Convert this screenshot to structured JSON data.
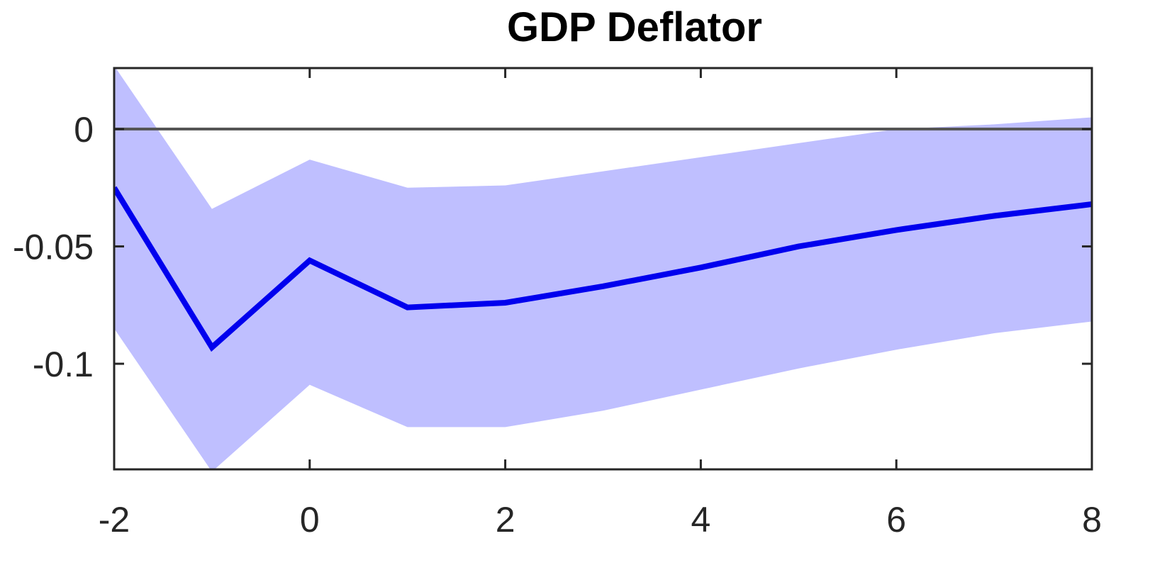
{
  "chart_data": {
    "type": "line",
    "title": "GDP Deflator",
    "xlabel": "",
    "ylabel": "",
    "xlim": [
      -2,
      8
    ],
    "ylim": [
      -0.145,
      0.026
    ],
    "x_ticks": [
      -2,
      0,
      2,
      4,
      6,
      8
    ],
    "x_tick_labels": [
      "-2",
      "0",
      "2",
      "4",
      "6",
      "8"
    ],
    "y_ticks": [
      0,
      -0.05,
      -0.1
    ],
    "y_tick_labels": [
      "0",
      "-0.05",
      "-0.1"
    ],
    "grid": false,
    "legend": "none",
    "zero_line": 0,
    "x": [
      -2,
      -1,
      0,
      1,
      2,
      3,
      4,
      5,
      6,
      7,
      8
    ],
    "series": [
      {
        "values": [
          -0.025,
          -0.093,
          -0.056,
          -0.076,
          -0.074,
          -0.067,
          -0.059,
          -0.05,
          -0.043,
          -0.037,
          -0.032
        ]
      }
    ],
    "band": {
      "upper": [
        0.027,
        -0.034,
        -0.013,
        -0.025,
        -0.024,
        -0.018,
        -0.012,
        -0.006,
        0.0,
        0.002,
        0.005
      ],
      "lower": [
        -0.085,
        -0.146,
        -0.109,
        -0.127,
        -0.127,
        -0.12,
        -0.111,
        -0.102,
        -0.094,
        -0.087,
        -0.082
      ]
    },
    "colors": {
      "line": "#0000ee",
      "band": "#bfbfff",
      "zero_line": "#555555",
      "axes": "#262626"
    }
  }
}
